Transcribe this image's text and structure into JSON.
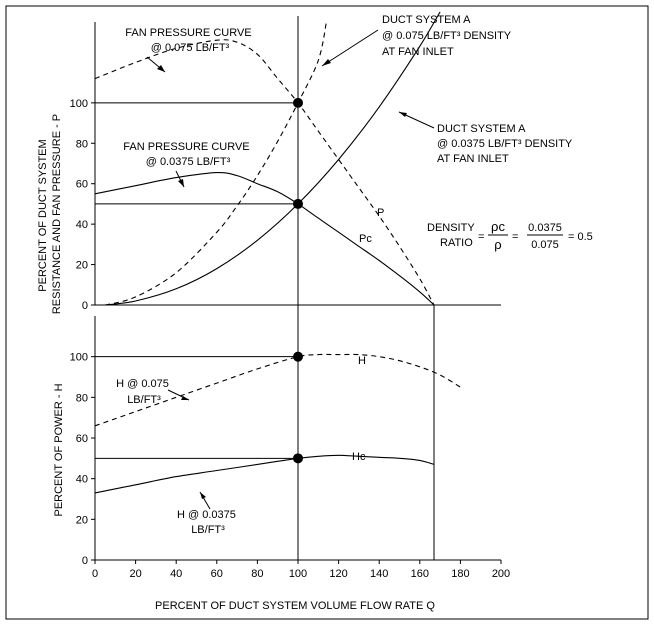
{
  "chart_data": [
    {
      "type": "line",
      "xlim": [
        0,
        200
      ],
      "ylim": [
        0,
        140
      ],
      "yticks": [
        "0",
        "20",
        "40",
        "60",
        "80",
        "100"
      ],
      "ylabel_line1": "PERCENT OF DUCT SYSTEM",
      "ylabel_line2": "RESISTANCE AND FAN PRESSURE - P",
      "series": [
        {
          "name": "P",
          "style": "dashed",
          "x": [
            0,
            20,
            40,
            60,
            70,
            80,
            90,
            100,
            110,
            120,
            130,
            140,
            150,
            160,
            167
          ],
          "y": [
            112,
            120,
            127,
            131,
            130,
            124,
            112,
            100,
            86,
            72,
            58,
            44,
            29,
            13,
            0
          ]
        },
        {
          "name": "Pc",
          "style": "solid",
          "x": [
            0,
            20,
            40,
            60,
            70,
            80,
            90,
            100,
            110,
            120,
            130,
            140,
            150,
            160,
            167
          ],
          "y": [
            55,
            59,
            63,
            65.5,
            64,
            60,
            56,
            50,
            43,
            36,
            29,
            22,
            14.5,
            6.5,
            0
          ]
        },
        {
          "name": "",
          "style": "dashed",
          "x": [
            5,
            20,
            40,
            60,
            70,
            80,
            90,
            100,
            110,
            114
          ],
          "y": [
            0,
            4,
            16,
            36,
            49,
            64,
            81,
            100,
            121,
            140
          ]
        },
        {
          "name": "",
          "style": "solid",
          "x": [
            5,
            20,
            40,
            60,
            80,
            100,
            120,
            140,
            160,
            170
          ],
          "y": [
            0,
            2,
            8,
            18,
            32,
            50,
            72,
            98,
            128,
            145
          ]
        }
      ],
      "points": [
        {
          "x": 100,
          "y": 100
        },
        {
          "x": 100,
          "y": 50
        }
      ],
      "annotations": {
        "fan_curve_075": [
          "FAN PRESSURE CURVE",
          "@ 0.075 LB/FT³"
        ],
        "fan_curve_0375": [
          "FAN PRESSURE CURVE",
          "@ 0.0375 LB/FT³"
        ],
        "duct_a_075": [
          "DUCT SYSTEM A",
          "@ 0.075 LB/FT³ DENSITY",
          "AT FAN INLET"
        ],
        "duct_a_0375": [
          "DUCT SYSTEM A",
          "@ 0.0375 LB/FT³ DENSITY",
          "AT FAN INLET"
        ],
        "p_label": "P",
        "pc_label": "Pc",
        "density_ratio": {
          "word1": "DENSITY",
          "word2": "RATIO",
          "eq1": "=",
          "num1": "ρc",
          "den1": "ρ",
          "eq2": "=",
          "num2": "0.0375",
          "den2": "0.075",
          "result": "= 0.5"
        }
      }
    },
    {
      "type": "line",
      "xlim": [
        0,
        200
      ],
      "ylim": [
        0,
        120
      ],
      "x_ticks": [
        "0",
        "20",
        "40",
        "60",
        "80",
        "100",
        "120",
        "140",
        "160",
        "180",
        "200"
      ],
      "yticks": [
        "0",
        "20",
        "40",
        "60",
        "80",
        "100"
      ],
      "xlabel": "PERCENT OF DUCT SYSTEM VOLUME FLOW RATE Q",
      "ylabel": "PERCENT OF POWER - H",
      "series": [
        {
          "name": "H",
          "style": "dashed",
          "x": [
            0,
            20,
            40,
            60,
            80,
            100,
            110,
            120,
            130,
            140,
            150,
            160,
            170,
            180
          ],
          "y": [
            66,
            73,
            80,
            87,
            94,
            100,
            101,
            101,
            101,
            100,
            98,
            95,
            91,
            85
          ]
        },
        {
          "name": "Hc",
          "style": "solid",
          "x": [
            0,
            20,
            40,
            60,
            80,
            100,
            110,
            120,
            130,
            140,
            150,
            160,
            167
          ],
          "y": [
            33,
            37,
            41,
            44,
            47,
            50,
            51,
            51.5,
            51,
            50.5,
            50,
            49,
            47
          ]
        }
      ],
      "points": [
        {
          "x": 100,
          "y": 100
        },
        {
          "x": 100,
          "y": 50
        }
      ],
      "annotations": {
        "h_label": "H",
        "hc_label": "Hc",
        "h_075": [
          "H  @  0.075",
          "LB/FT³"
        ],
        "h_0375": [
          "H  @  0.0375",
          "LB/FT³"
        ]
      }
    }
  ]
}
